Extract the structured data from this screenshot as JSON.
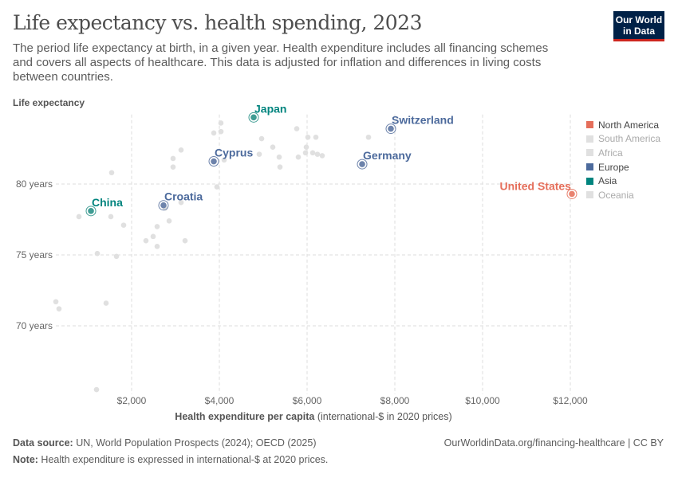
{
  "header": {
    "title": "Life expectancy vs. health spending, 2023",
    "subtitle": "The period life expectancy at birth, in a given year. Health expenditure includes all financing schemes and covers all aspects of healthcare. This data is adjusted for inflation and differences in living costs between countries.",
    "logo": "Our World in Data"
  },
  "chart_data": {
    "type": "scatter",
    "title": "Life expectancy vs. health spending, 2023",
    "ylabel": "Life expectancy",
    "xlabel_bold": "Health expenditure per capita",
    "xlabel_rest": " (international-$ in 2020 prices)",
    "xlim": [
      0,
      12200
    ],
    "ylim": [
      65.2,
      84.9
    ],
    "xticks": [
      {
        "v": 2000,
        "label": "$2,000"
      },
      {
        "v": 4000,
        "label": "$4,000"
      },
      {
        "v": 6000,
        "label": "$6,000"
      },
      {
        "v": 8000,
        "label": "$8,000"
      },
      {
        "v": 10000,
        "label": "$10,000"
      },
      {
        "v": 12000,
        "label": "$12,000"
      }
    ],
    "yticks": [
      {
        "v": 70,
        "label": "70 years"
      },
      {
        "v": 75,
        "label": "75 years"
      },
      {
        "v": 80,
        "label": "80 years"
      }
    ],
    "grid": true,
    "legend_position": "right",
    "legend": [
      {
        "name": "North America",
        "color": "#e56e5a"
      },
      {
        "name": "South America",
        "color": "#e0e0e0"
      },
      {
        "name": "Africa",
        "color": "#e0e0e0"
      },
      {
        "name": "Europe",
        "color": "#4c6a9c"
      },
      {
        "name": "Asia",
        "color": "#00847e"
      },
      {
        "name": "Oceania",
        "color": "#e0e0e0"
      }
    ],
    "highlighted": [
      {
        "label": "Japan",
        "x": 4782,
        "y": 84.7,
        "color": "#00847e",
        "dot": "#3f9c93"
      },
      {
        "label": "Switzerland",
        "x": 7909,
        "y": 83.9,
        "color": "#4c6a9c",
        "dot": "#6d83ab"
      },
      {
        "label": "Germany",
        "x": 7255,
        "y": 81.4,
        "color": "#4c6a9c",
        "dot": "#6d83ab"
      },
      {
        "label": "Cyprus",
        "x": 3873,
        "y": 81.6,
        "color": "#4c6a9c",
        "dot": "#6d83ab"
      },
      {
        "label": "Croatia",
        "x": 2727,
        "y": 78.5,
        "color": "#4c6a9c",
        "dot": "#6d83ab"
      },
      {
        "label": "China",
        "x": 1073,
        "y": 78.1,
        "color": "#00847e",
        "dot": "#3f9c93"
      },
      {
        "label": "United States",
        "x": 12036,
        "y": 79.3,
        "color": "#e56e5a",
        "dot": "#e9826f"
      }
    ],
    "other_points": [
      [
        4036,
        84.3
      ],
      [
        4036,
        83.7
      ],
      [
        3873,
        83.6
      ],
      [
        4964,
        83.2
      ],
      [
        5764,
        83.9
      ],
      [
        6018,
        83.3
      ],
      [
        6200,
        83.3
      ],
      [
        5982,
        82.6
      ],
      [
        5964,
        82.2
      ],
      [
        6127,
        82.2
      ],
      [
        6345,
        82.0
      ],
      [
        6236,
        82.1
      ],
      [
        5218,
        82.6
      ],
      [
        4909,
        82.1
      ],
      [
        5364,
        81.9
      ],
      [
        5382,
        81.2
      ],
      [
        5800,
        81.9
      ],
      [
        4109,
        81.7
      ],
      [
        3127,
        82.4
      ],
      [
        2945,
        81.8
      ],
      [
        2945,
        81.2
      ],
      [
        1545,
        80.8
      ],
      [
        3945,
        79.8
      ],
      [
        3127,
        78.7
      ],
      [
        2764,
        78.3
      ],
      [
        800,
        77.7
      ],
      [
        1527,
        77.7
      ],
      [
        1818,
        77.1
      ],
      [
        2855,
        77.4
      ],
      [
        2582,
        77.0
      ],
      [
        2491,
        76.3
      ],
      [
        2327,
        76.0
      ],
      [
        2582,
        75.6
      ],
      [
        3218,
        76.0
      ],
      [
        1218,
        75.1
      ],
      [
        1655,
        74.9
      ],
      [
        273,
        71.7
      ],
      [
        345,
        71.2
      ],
      [
        1418,
        71.6
      ],
      [
        1200,
        65.5
      ],
      [
        7400,
        83.3
      ]
    ]
  },
  "footer": {
    "source_label": "Data source:",
    "source": " UN, World Population Prospects (2024); OECD (2025)",
    "note_label": "Note:",
    "note": " Health expenditure is expressed in international-$ at 2020 prices.",
    "url": "OurWorldinData.org/financing-healthcare | CC BY"
  }
}
